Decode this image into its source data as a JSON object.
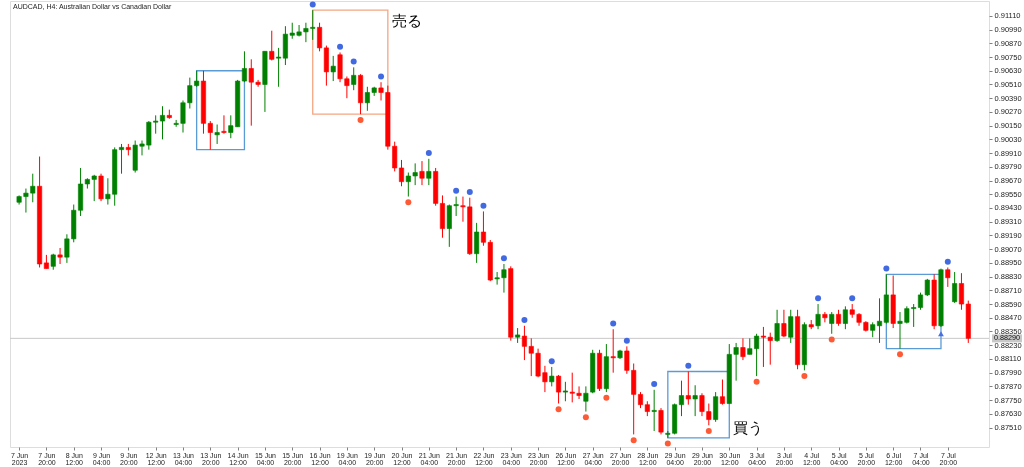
{
  "chart_data": {
    "type": "candlestick",
    "title": "AUDCAD, H4: Australian Dollar vs Canadian Dollar",
    "categories": [
      "7 Jun 2023",
      null,
      null,
      null,
      "7 Jun 20:00",
      null,
      null,
      null,
      "8 Jun 12:00",
      null,
      null,
      null,
      "9 Jun 04:00",
      null,
      null,
      null,
      "9 Jun 20:00",
      null,
      null,
      null,
      "12 Jun 12:00",
      null,
      null,
      null,
      "13 Jun 04:00",
      null,
      null,
      null,
      "13 Jun 20:00",
      null,
      null,
      null,
      "14 Jun 12:00",
      null,
      null,
      null,
      "15 Jun 04:00",
      null,
      null,
      null,
      "15 Jun 20:00",
      null,
      null,
      null,
      "16 Jun 12:00",
      null,
      null,
      null,
      "19 Jun 04:00",
      null,
      null,
      null,
      "19 Jun 20:00",
      null,
      null,
      null,
      "20 Jun 12:00",
      null,
      null,
      null,
      "21 Jun 04:00",
      null,
      null,
      null,
      "21 Jun 20:00",
      null,
      null,
      null,
      "22 Jun 12:00",
      null,
      null,
      null,
      "23 Jun 04:00",
      null,
      null,
      null,
      "23 Jun 20:00",
      null,
      null,
      null,
      "26 Jun 12:00",
      null,
      null,
      null,
      "27 Jun 04:00",
      null,
      null,
      null,
      "27 Jun 20:00",
      null,
      null,
      null,
      "28 Jun 12:00",
      null,
      null,
      null,
      "29 Jun 04:00",
      null,
      null,
      null,
      "29 Jun 20:00",
      null,
      null,
      null,
      "30 Jun 12:00",
      null,
      null,
      null,
      "3 Jul 04:00",
      null,
      null,
      null,
      "3 Jul 20:00",
      null,
      null,
      null,
      "4 Jul 12:00",
      null,
      null,
      null,
      "5 Jul 04:00",
      null,
      null,
      null,
      "5 Jul 20:00",
      null,
      null,
      null,
      "6 Jul 12:00",
      null,
      null,
      null,
      "7 Jul 04:00",
      null,
      null,
      null,
      "7 Jul 20:00",
      null,
      null,
      null
    ],
    "ohlc": [
      [
        0.8948,
        0.8954,
        0.8946,
        0.8953
      ],
      [
        0.8953,
        0.896,
        0.8939,
        0.8956
      ],
      [
        0.8956,
        0.8973,
        0.8948,
        0.8962
      ],
      [
        0.8962,
        0.8988,
        0.8891,
        0.8894
      ],
      [
        0.8895,
        0.8902,
        0.889,
        0.889
      ],
      [
        0.8892,
        0.8903,
        0.8889,
        0.8902
      ],
      [
        0.8902,
        0.8908,
        0.8894,
        0.89
      ],
      [
        0.89,
        0.892,
        0.8895,
        0.8916
      ],
      [
        0.8916,
        0.8946,
        0.8913,
        0.8941
      ],
      [
        0.8941,
        0.8978,
        0.8936,
        0.8964
      ],
      [
        0.8964,
        0.8969,
        0.896,
        0.8968
      ],
      [
        0.8968,
        0.8972,
        0.8949,
        0.8971
      ],
      [
        0.8971,
        0.8973,
        0.8949,
        0.8951
      ],
      [
        0.8951,
        0.8969,
        0.8946,
        0.8955
      ],
      [
        0.8955,
        0.8996,
        0.8945,
        0.8994
      ],
      [
        0.8994,
        0.8999,
        0.8973,
        0.8996
      ],
      [
        0.8996,
        0.8999,
        0.8989,
        0.8994
      ],
      [
        0.8976,
        0.9002,
        0.8974,
        0.8998
      ],
      [
        0.8997,
        0.9002,
        0.8989,
        0.8999
      ],
      [
        0.8998,
        0.9019,
        0.8994,
        0.9018
      ],
      [
        0.9018,
        0.9024,
        0.9008,
        0.9019
      ],
      [
        0.9019,
        0.9032,
        0.9003,
        0.9024
      ],
      [
        0.9024,
        0.9029,
        0.9021,
        0.9022
      ],
      [
        0.9016,
        0.902,
        0.9014,
        0.9017
      ],
      [
        0.9017,
        0.9037,
        0.9009,
        0.9035
      ],
      [
        0.9035,
        0.9057,
        0.903,
        0.905
      ],
      [
        0.905,
        0.9063,
        0.9049,
        0.9054
      ],
      [
        0.9054,
        0.9063,
        0.9008,
        0.9017
      ],
      [
        0.9017,
        0.9019,
        0.8994,
        0.9009
      ],
      [
        0.9007,
        0.9016,
        0.8999,
        0.9009
      ],
      [
        0.901,
        0.9024,
        0.9008,
        0.9009
      ],
      [
        0.9009,
        0.9024,
        0.9004,
        0.9015
      ],
      [
        0.9014,
        0.9055,
        0.9014,
        0.9054
      ],
      [
        0.9054,
        0.908,
        0.9053,
        0.9065
      ],
      [
        0.9065,
        0.9073,
        0.9015,
        0.9053
      ],
      [
        0.9053,
        0.9055,
        0.9049,
        0.9051
      ],
      [
        0.9051,
        0.908,
        0.9027,
        0.908
      ],
      [
        0.908,
        0.9098,
        0.9072,
        0.9073
      ],
      [
        0.9074,
        0.9083,
        0.9049,
        0.9075
      ],
      [
        0.9074,
        0.9102,
        0.9068,
        0.9095
      ],
      [
        0.9094,
        0.9105,
        0.9091,
        0.9096
      ],
      [
        0.9094,
        0.9103,
        0.9093,
        0.9097
      ],
      [
        0.9097,
        0.9105,
        0.9088,
        0.91
      ],
      [
        0.91,
        0.9116,
        0.909,
        0.9101
      ],
      [
        0.9101,
        0.9105,
        0.908,
        0.9083
      ],
      [
        0.9083,
        0.9085,
        0.905,
        0.9062
      ],
      [
        0.9062,
        0.9076,
        0.9054,
        0.9067
      ],
      [
        0.9077,
        0.9079,
        0.9053,
        0.9056
      ],
      [
        0.9056,
        0.9058,
        0.9039,
        0.905
      ],
      [
        0.9051,
        0.9066,
        0.9046,
        0.9059
      ],
      [
        0.9059,
        0.906,
        0.9025,
        0.9035
      ],
      [
        0.9035,
        0.9049,
        0.9028,
        0.9044
      ],
      [
        0.9044,
        0.9049,
        0.9041,
        0.9048
      ],
      [
        0.9048,
        0.9053,
        0.9037,
        0.9044
      ],
      [
        0.9044,
        0.905,
        0.8994,
        0.8997
      ],
      [
        0.8997,
        0.9001,
        0.8975,
        0.8978
      ],
      [
        0.8978,
        0.8985,
        0.8962,
        0.8966
      ],
      [
        0.8966,
        0.8974,
        0.8953,
        0.8971
      ],
      [
        0.8971,
        0.8982,
        0.8963,
        0.8974
      ],
      [
        0.8975,
        0.8984,
        0.8963,
        0.8969
      ],
      [
        0.8969,
        0.8986,
        0.8963,
        0.8975
      ],
      [
        0.8975,
        0.8978,
        0.8945,
        0.8947
      ],
      [
        0.8947,
        0.8954,
        0.8917,
        0.8925
      ],
      [
        0.8925,
        0.8946,
        0.8909,
        0.8945
      ],
      [
        0.8945,
        0.8953,
        0.8936,
        0.8946
      ],
      [
        0.8945,
        0.8953,
        0.8931,
        0.8944
      ],
      [
        0.8944,
        0.8952,
        0.8902,
        0.8903
      ],
      [
        0.8903,
        0.893,
        0.8895,
        0.8922
      ],
      [
        0.8922,
        0.894,
        0.891,
        0.8913
      ],
      [
        0.8913,
        0.8915,
        0.8879,
        0.888
      ],
      [
        0.8881,
        0.8887,
        0.8876,
        0.8882
      ],
      [
        0.8882,
        0.8894,
        0.8869,
        0.8889
      ],
      [
        0.889,
        0.8892,
        0.8827,
        0.883
      ],
      [
        0.883,
        0.8838,
        0.8825,
        0.8832
      ],
      [
        0.8831,
        0.884,
        0.881,
        0.8822
      ],
      [
        0.8822,
        0.8829,
        0.8796,
        0.8816
      ],
      [
        0.8816,
        0.882,
        0.8795,
        0.8796
      ],
      [
        0.8799,
        0.8805,
        0.8782,
        0.8791
      ],
      [
        0.8791,
        0.8804,
        0.8787,
        0.8796
      ],
      [
        0.8796,
        0.8797,
        0.8772,
        0.8782
      ],
      [
        0.8782,
        0.8791,
        0.8774,
        0.8783
      ],
      [
        0.8782,
        0.8799,
        0.8773,
        0.8781
      ],
      [
        0.8781,
        0.8787,
        0.8776,
        0.8779
      ],
      [
        0.8774,
        0.8787,
        0.8765,
        0.8781
      ],
      [
        0.8782,
        0.8819,
        0.8781,
        0.8816
      ],
      [
        0.8816,
        0.8819,
        0.8783,
        0.8785
      ],
      [
        0.8785,
        0.8824,
        0.8782,
        0.8813
      ],
      [
        0.8813,
        0.8837,
        0.8799,
        0.8812
      ],
      [
        0.8812,
        0.8819,
        0.8811,
        0.8818
      ],
      [
        0.8818,
        0.8822,
        0.8798,
        0.8801
      ],
      [
        0.8801,
        0.8807,
        0.8745,
        0.878
      ],
      [
        0.878,
        0.8782,
        0.8768,
        0.8771
      ],
      [
        0.8771,
        0.8774,
        0.8761,
        0.8765
      ],
      [
        0.8765,
        0.8784,
        0.8748,
        0.8766
      ],
      [
        0.8766,
        0.8768,
        0.8745,
        0.8747
      ],
      [
        0.8745,
        0.8748,
        0.8742,
        0.8746
      ],
      [
        0.8746,
        0.8772,
        0.8745,
        0.8771
      ],
      [
        0.8771,
        0.8792,
        0.8761,
        0.8779
      ],
      [
        0.8779,
        0.88,
        0.8771,
        0.8776
      ],
      [
        0.8776,
        0.8788,
        0.8761,
        0.8779
      ],
      [
        0.8779,
        0.8781,
        0.8761,
        0.8765
      ],
      [
        0.8765,
        0.8772,
        0.8753,
        0.8758
      ],
      [
        0.8758,
        0.8782,
        0.8756,
        0.8778
      ],
      [
        0.8778,
        0.8793,
        0.8771,
        0.8772
      ],
      [
        0.8772,
        0.8824,
        0.8772,
        0.8815
      ],
      [
        0.8815,
        0.8825,
        0.8792,
        0.8821
      ],
      [
        0.8821,
        0.8829,
        0.881,
        0.8813
      ],
      [
        0.8815,
        0.8829,
        0.8815,
        0.882
      ],
      [
        0.882,
        0.8833,
        0.8796,
        0.8831
      ],
      [
        0.8831,
        0.8839,
        0.8804,
        0.883
      ],
      [
        0.883,
        0.8834,
        0.8806,
        0.8827
      ],
      [
        0.8827,
        0.8854,
        0.8826,
        0.8842
      ],
      [
        0.8842,
        0.8854,
        0.883,
        0.8831
      ],
      [
        0.883,
        0.8854,
        0.8825,
        0.8848
      ],
      [
        0.8848,
        0.8854,
        0.8802,
        0.8806
      ],
      [
        0.8806,
        0.8843,
        0.8801,
        0.8841
      ],
      [
        0.8841,
        0.8845,
        0.8837,
        0.8839
      ],
      [
        0.884,
        0.8859,
        0.8837,
        0.885
      ],
      [
        0.885,
        0.8852,
        0.8843,
        0.8847
      ],
      [
        0.8842,
        0.8852,
        0.8833,
        0.885
      ],
      [
        0.885,
        0.8854,
        0.884,
        0.8842
      ],
      [
        0.8842,
        0.8857,
        0.8837,
        0.8854
      ],
      [
        0.8854,
        0.8859,
        0.8847,
        0.885
      ],
      [
        0.885,
        0.8851,
        0.884,
        0.8843
      ],
      [
        0.8843,
        0.8844,
        0.8835,
        0.8836
      ],
      [
        0.8836,
        0.8843,
        0.883,
        0.8841
      ],
      [
        0.884,
        0.8864,
        0.8825,
        0.8844
      ],
      [
        0.8843,
        0.8885,
        0.8842,
        0.8867
      ],
      [
        0.8867,
        0.8884,
        0.8838,
        0.8842
      ],
      [
        0.8842,
        0.8852,
        0.882,
        0.8844
      ],
      [
        0.8843,
        0.8857,
        0.8842,
        0.8855
      ],
      [
        0.8855,
        0.8859,
        0.8839,
        0.8856
      ],
      [
        0.8856,
        0.8869,
        0.8854,
        0.8867
      ],
      [
        0.8867,
        0.8881,
        0.8866,
        0.888
      ],
      [
        0.888,
        0.8885,
        0.8837,
        0.884
      ],
      [
        0.884,
        0.889,
        0.8839,
        0.8889
      ],
      [
        0.8889,
        0.8891,
        0.8874,
        0.8882
      ],
      [
        0.8861,
        0.8887,
        0.886,
        0.8877
      ],
      [
        0.8877,
        0.8886,
        0.8854,
        0.8859
      ],
      [
        0.8859,
        0.8862,
        0.8825,
        0.8829
      ]
    ],
    "colors": [
      "#008000",
      "#008000",
      "#008000",
      "#ff0000",
      "#ff0000",
      "#008000",
      "#ff0000",
      "#008000",
      "#008000",
      "#008000",
      "#008000",
      "#008000",
      "#ff0000",
      "#008000",
      "#008000",
      "#008000",
      "#ff0000",
      "#008000",
      "#008000",
      "#008000",
      "#008000",
      "#008000",
      "#ff0000",
      "#008000",
      "#008000",
      "#008000",
      "#008000",
      "#ff0000",
      "#ff0000",
      "#008000",
      "#ff0000",
      "#008000",
      "#008000",
      "#008000",
      "#ff0000",
      "#ff0000",
      "#008000",
      "#ff0000",
      "#008000",
      "#008000",
      "#008000",
      "#008000",
      "#008000",
      "#008000",
      "#ff0000",
      "#ff0000",
      "#008000",
      "#ff0000",
      "#ff0000",
      "#008000",
      "#ff0000",
      "#008000",
      "#008000",
      "#ff0000",
      "#ff0000",
      "#ff0000",
      "#ff0000",
      "#008000",
      "#008000",
      "#ff0000",
      "#008000",
      "#ff0000",
      "#ff0000",
      "#008000",
      "#008000",
      "#ff0000",
      "#ff0000",
      "#008000",
      "#ff0000",
      "#ff0000",
      "#008000",
      "#008000",
      "#ff0000",
      "#008000",
      "#ff0000",
      "#ff0000",
      "#ff0000",
      "#ff0000",
      "#008000",
      "#ff0000",
      "#008000",
      "#ff0000",
      "#ff0000",
      "#008000",
      "#008000",
      "#ff0000",
      "#008000",
      "#ff0000",
      "#008000",
      "#ff0000",
      "#ff0000",
      "#ff0000",
      "#ff0000",
      "#008000",
      "#ff0000",
      "#008000",
      "#008000",
      "#008000",
      "#ff0000",
      "#008000",
      "#ff0000",
      "#ff0000",
      "#008000",
      "#ff0000",
      "#008000",
      "#008000",
      "#ff0000",
      "#008000",
      "#008000",
      "#ff0000",
      "#ff0000",
      "#008000",
      "#ff0000",
      "#008000",
      "#ff0000",
      "#008000",
      "#ff0000",
      "#008000",
      "#ff0000",
      "#008000",
      "#ff0000",
      "#008000",
      "#ff0000",
      "#ff0000",
      "#ff0000",
      "#008000",
      "#008000",
      "#008000",
      "#ff0000",
      "#008000",
      "#008000",
      "#008000",
      "#008000",
      "#008000",
      "#ff0000",
      "#008000",
      "#ff0000",
      "#008000",
      "#ff0000",
      "#ff0000"
    ],
    "series": [
      {
        "type": "scatter",
        "marker": "circle",
        "color": "#4169e1",
        "values": [
          null,
          null,
          null,
          null,
          null,
          null,
          null,
          null,
          null,
          null,
          null,
          null,
          null,
          null,
          null,
          null,
          null,
          null,
          null,
          null,
          null,
          null,
          null,
          null,
          null,
          null,
          null,
          null,
          null,
          null,
          null,
          null,
          null,
          null,
          null,
          null,
          null,
          null,
          null,
          null,
          null,
          null,
          null,
          0.9121,
          null,
          null,
          null,
          0.9084,
          null,
          0.9071,
          null,
          null,
          null,
          0.9058,
          null,
          null,
          null,
          null,
          null,
          null,
          0.8991,
          null,
          null,
          null,
          0.8958,
          null,
          0.8957,
          null,
          0.8945,
          null,
          null,
          0.8899,
          null,
          null,
          0.8845,
          null,
          null,
          null,
          0.8809,
          null,
          null,
          null,
          null,
          null,
          null,
          null,
          null,
          0.8842,
          null,
          0.8827,
          null,
          null,
          null,
          0.8789,
          null,
          null,
          null,
          null,
          0.8805,
          null,
          null,
          null,
          null,
          null,
          null,
          null,
          null,
          null,
          null,
          null,
          null,
          null,
          null,
          null,
          null,
          null,
          null,
          0.8864,
          null,
          null,
          null,
          null,
          0.8864,
          null,
          null,
          null,
          null,
          0.889,
          null,
          null,
          null,
          null,
          null,
          null,
          null,
          null,
          0.8896,
          null,
          null,
          null
        ]
      },
      {
        "type": "scatter",
        "marker": "circle",
        "color": "#ff5a36",
        "values": [
          null,
          null,
          null,
          null,
          null,
          null,
          null,
          null,
          null,
          null,
          null,
          null,
          null,
          null,
          null,
          null,
          null,
          null,
          null,
          null,
          null,
          null,
          null,
          null,
          null,
          null,
          null,
          null,
          null,
          null,
          null,
          null,
          null,
          null,
          null,
          null,
          null,
          null,
          null,
          null,
          null,
          null,
          null,
          null,
          null,
          null,
          null,
          null,
          null,
          null,
          0.902,
          null,
          null,
          null,
          null,
          null,
          null,
          0.8948,
          null,
          null,
          null,
          null,
          null,
          null,
          null,
          null,
          null,
          null,
          null,
          null,
          null,
          null,
          null,
          null,
          null,
          null,
          null,
          null,
          null,
          0.8767,
          null,
          null,
          null,
          0.876,
          null,
          null,
          0.8777,
          null,
          null,
          null,
          0.874,
          null,
          null,
          null,
          null,
          0.8737,
          null,
          null,
          null,
          null,
          null,
          0.8748,
          null,
          null,
          null,
          null,
          null,
          null,
          0.8791,
          null,
          null,
          null,
          null,
          null,
          null,
          0.8796,
          null,
          null,
          null,
          0.8828,
          null,
          null,
          null,
          null,
          null,
          null,
          null,
          null,
          null,
          0.8815,
          null,
          null,
          null,
          null,
          null,
          null,
          null,
          null,
          null,
          null
        ]
      },
      {
        "type": "scatter",
        "marker": "triangle",
        "color": "#4a6fe3",
        "values": [
          null,
          null,
          null,
          null,
          null,
          null,
          null,
          null,
          null,
          null,
          null,
          null,
          null,
          null,
          null,
          null,
          null,
          null,
          null,
          null,
          null,
          null,
          null,
          null,
          null,
          null,
          null,
          null,
          null,
          null,
          null,
          null,
          null,
          null,
          null,
          null,
          null,
          null,
          null,
          null,
          null,
          null,
          null,
          null,
          null,
          null,
          null,
          null,
          null,
          null,
          null,
          null,
          null,
          null,
          null,
          null,
          null,
          null,
          null,
          null,
          null,
          null,
          null,
          null,
          null,
          null,
          null,
          null,
          null,
          null,
          null,
          null,
          null,
          null,
          null,
          null,
          null,
          null,
          null,
          null,
          null,
          null,
          null,
          null,
          null,
          null,
          null,
          null,
          null,
          null,
          null,
          null,
          null,
          null,
          null,
          null,
          null,
          null,
          null,
          null,
          null,
          null,
          null,
          null,
          null,
          null,
          null,
          null,
          null,
          null,
          null,
          null,
          null,
          null,
          null,
          null,
          null,
          null,
          null,
          null,
          null,
          null,
          null,
          null,
          null,
          null,
          null,
          null,
          null,
          null,
          null,
          null,
          null,
          null,
          null,
          0.8833,
          null,
          null,
          null,
          null
        ]
      }
    ],
    "ylim": [
      0.8734,
      0.9124
    ],
    "yticks": [
      {
        "value": 0.8751,
        "label": "0.87510"
      },
      {
        "value": 0.8763,
        "label": "0.87630"
      },
      {
        "value": 0.8775,
        "label": "0.87750"
      },
      {
        "value": 0.8787,
        "label": "0.87870"
      },
      {
        "value": 0.8799,
        "label": "0.87990"
      },
      {
        "value": 0.8811,
        "label": "0.88110"
      },
      {
        "value": 0.8823,
        "label": "0.88230"
      },
      {
        "value": 0.8835,
        "label": "0.88350"
      },
      {
        "value": 0.8847,
        "label": "0.88470"
      },
      {
        "value": 0.8859,
        "label": "0.88590"
      },
      {
        "value": 0.8871,
        "label": "0.88710"
      },
      {
        "value": 0.8883,
        "label": "0.88830"
      },
      {
        "value": 0.8895,
        "label": "0.88950"
      },
      {
        "value": 0.8907,
        "label": "0.89070"
      },
      {
        "value": 0.8919,
        "label": "0.89190"
      },
      {
        "value": 0.8931,
        "label": "0.89310"
      },
      {
        "value": 0.8943,
        "label": "0.89430"
      },
      {
        "value": 0.8955,
        "label": "0.89550"
      },
      {
        "value": 0.8967,
        "label": "0.89670"
      },
      {
        "value": 0.8979,
        "label": "0.89790"
      },
      {
        "value": 0.8991,
        "label": "0.89910"
      },
      {
        "value": 0.9003,
        "label": "0.90030"
      },
      {
        "value": 0.9015,
        "label": "0.90150"
      },
      {
        "value": 0.9027,
        "label": "0.90270"
      },
      {
        "value": 0.9039,
        "label": "0.90390"
      },
      {
        "value": 0.9051,
        "label": "0.90510"
      },
      {
        "value": 0.9063,
        "label": "0.90630"
      },
      {
        "value": 0.9075,
        "label": "0.90750"
      },
      {
        "value": 0.9087,
        "label": "0.90870"
      },
      {
        "value": 0.9099,
        "label": "0.90990"
      },
      {
        "value": 0.9111,
        "label": "0.91110"
      }
    ],
    "ref_lines": [
      {
        "axis": "y",
        "value": 0.8829,
        "label": "0.88290",
        "color": "#c8c8c8",
        "line_style": "solid"
      }
    ],
    "annotations": [
      "売る",
      "買う"
    ],
    "grid": false
  }
}
